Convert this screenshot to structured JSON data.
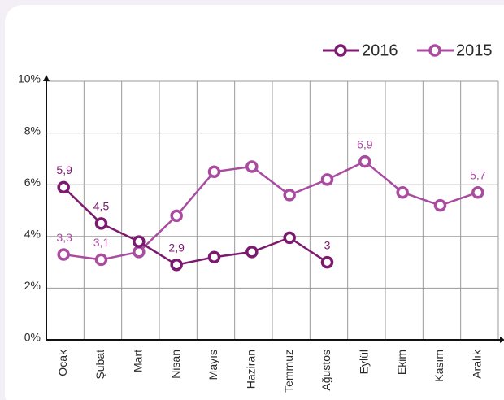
{
  "chart_data": {
    "type": "line",
    "categories": [
      "Ocak",
      "Şubat",
      "Mart",
      "Nisan",
      "Mayıs",
      "Haziran",
      "Temmuz",
      "Ağustos",
      "Eylül",
      "Ekim",
      "Kasım",
      "Aralık"
    ],
    "series": [
      {
        "name": "2016",
        "color": "#7b1a6e",
        "values": [
          5.9,
          4.5,
          3.8,
          2.9,
          3.2,
          3.4,
          3.95,
          3.0,
          null,
          null,
          null,
          null
        ],
        "value_labels": [
          "5,9",
          "4,5",
          null,
          "2,9",
          null,
          null,
          null,
          "3",
          null,
          null,
          null,
          null
        ]
      },
      {
        "name": "2015",
        "color": "#a94ca0",
        "values": [
          3.3,
          3.1,
          3.4,
          4.8,
          6.5,
          6.7,
          5.6,
          6.2,
          6.9,
          5.7,
          5.2,
          5.7
        ],
        "value_labels": [
          "3,3",
          "3,1",
          null,
          null,
          null,
          null,
          null,
          null,
          "6,9",
          null,
          null,
          "5,7"
        ]
      }
    ],
    "ylim": [
      0,
      10
    ],
    "yticks": [
      {
        "value": 0,
        "label": "0%"
      },
      {
        "value": 2,
        "label": "2%"
      },
      {
        "value": 4,
        "label": "4%"
      },
      {
        "value": 6,
        "label": "6%"
      },
      {
        "value": 8,
        "label": "8%"
      },
      {
        "value": 10,
        "label": "10%"
      }
    ],
    "grid": true,
    "legend": "top-right"
  }
}
